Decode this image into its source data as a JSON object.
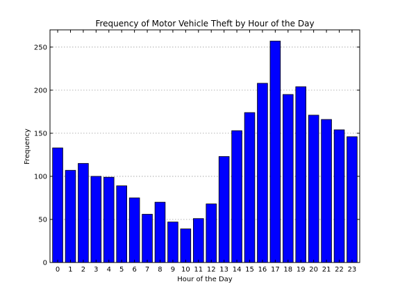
{
  "chart_data": {
    "type": "bar",
    "title": "Frequency of Motor Vehicle Theft by Hour of the Day",
    "xlabel": "Hour of the Day",
    "ylabel": "Frequency",
    "categories": [
      "0",
      "1",
      "2",
      "3",
      "4",
      "5",
      "6",
      "7",
      "8",
      "9",
      "10",
      "11",
      "12",
      "13",
      "14",
      "15",
      "16",
      "17",
      "18",
      "19",
      "20",
      "21",
      "22",
      "23"
    ],
    "values": [
      133,
      107,
      115,
      100,
      99,
      89,
      75,
      56,
      70,
      47,
      39,
      51,
      68,
      123,
      153,
      174,
      208,
      257,
      195,
      204,
      171,
      166,
      154,
      146
    ],
    "ylim": [
      0,
      270
    ],
    "yticks": [
      0,
      50,
      100,
      150,
      200,
      250
    ],
    "grid": "horizontal dotted",
    "bar_color": "#0000ff"
  }
}
